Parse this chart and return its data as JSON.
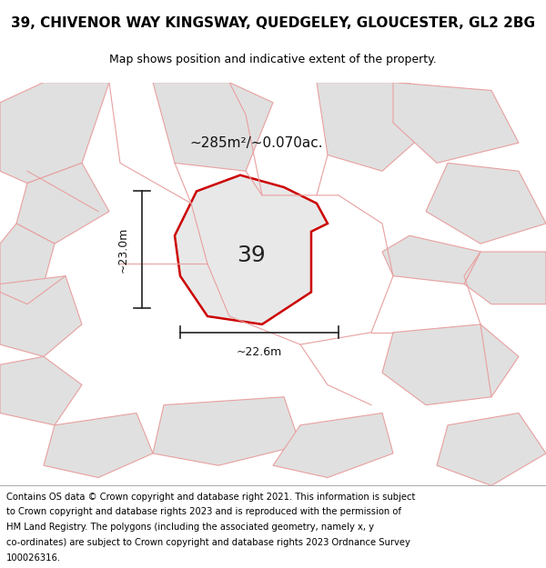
{
  "title": "39, CHIVENOR WAY KINGSWAY, QUEDGELEY, GLOUCESTER, GL2 2BG",
  "subtitle": "Map shows position and indicative extent of the property.",
  "area_label": "~285m²/~0.070ac.",
  "plot_number": "39",
  "dim_height": "~23.0m",
  "dim_width": "~22.6m",
  "footer_lines": [
    "Contains OS data © Crown copyright and database right 2021. This information is subject",
    "to Crown copyright and database rights 2023 and is reproduced with the permission of",
    "HM Land Registry. The polygons (including the associated geometry, namely x, y",
    "co-ordinates) are subject to Crown copyright and database rights 2023 Ordnance Survey",
    "100026316."
  ],
  "map_bg": "#f0f0f0",
  "nearby_fc": "#e0e0e0",
  "nearby_ec": "#e8a0a0",
  "main_fc": "#e8e8e8",
  "main_ec": "#cc0000",
  "title_fontsize": 11,
  "subtitle_fontsize": 9,
  "footer_fontsize": 7.2,
  "area_fontsize": 11,
  "plot_label_fontsize": 18,
  "dim_fontsize": 9
}
